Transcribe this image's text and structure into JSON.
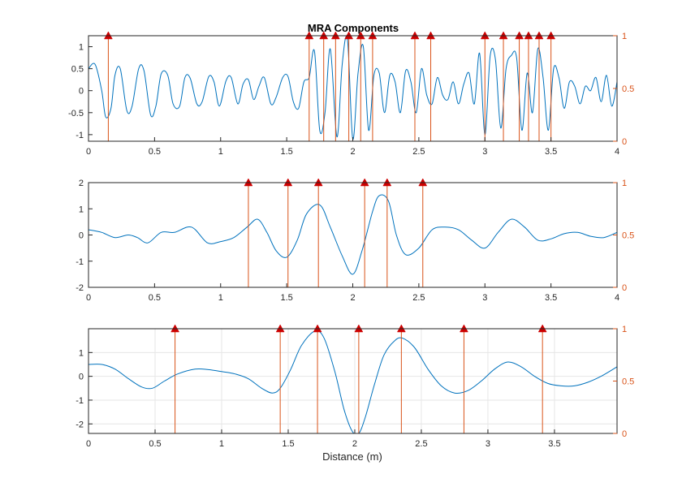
{
  "figure": {
    "title": "MRA Components",
    "xlabel": "Distance (m)"
  },
  "colors": {
    "signal": "#0072BD",
    "stem": "#D95319",
    "marker": "#CC0000",
    "axis": "#262626",
    "grid": "#E6E6E6"
  },
  "chart_data": [
    {
      "type": "line",
      "name": "panel-1",
      "xlim": [
        0,
        4
      ],
      "ylim": [
        -1.15,
        1.25
      ],
      "y2lim": [
        0,
        1
      ],
      "x_ticks": [
        0,
        0.5,
        1,
        1.5,
        2,
        2.5,
        3,
        3.5,
        4
      ],
      "x_tick_labels": [
        "0",
        "0.5",
        "1",
        "1.5",
        "2",
        "2.5",
        "3",
        "3.5",
        "4"
      ],
      "y_ticks": [
        -1,
        -0.5,
        0,
        0.5,
        1
      ],
      "y_tick_labels": [
        "-1",
        "-0.5",
        "0",
        "0.5",
        "1"
      ],
      "y2_ticks": [
        0,
        0.5,
        1
      ],
      "y2_tick_labels": [
        "0",
        "0.5",
        "1"
      ],
      "grid": false,
      "stems_x": [
        0.15,
        1.67,
        1.78,
        1.87,
        1.97,
        2.06,
        2.15,
        2.47,
        2.59,
        3.0,
        3.14,
        3.26,
        3.33,
        3.41,
        3.5
      ],
      "stem_height": 1,
      "signal": {
        "x": [
          0,
          0.05,
          0.1,
          0.13,
          0.17,
          0.2,
          0.24,
          0.29,
          0.33,
          0.38,
          0.42,
          0.47,
          0.51,
          0.55,
          0.6,
          0.64,
          0.69,
          0.73,
          0.77,
          0.82,
          0.86,
          0.91,
          0.95,
          0.99,
          1.04,
          1.08,
          1.13,
          1.17,
          1.21,
          1.25,
          1.29,
          1.33,
          1.38,
          1.42,
          1.47,
          1.51,
          1.55,
          1.59,
          1.63,
          1.67,
          1.71,
          1.75,
          1.79,
          1.83,
          1.88,
          1.92,
          1.96,
          2.0,
          2.04,
          2.08,
          2.12,
          2.16,
          2.2,
          2.24,
          2.28,
          2.32,
          2.36,
          2.4,
          2.44,
          2.48,
          2.52,
          2.56,
          2.6,
          2.64,
          2.68,
          2.72,
          2.76,
          2.8,
          2.84,
          2.88,
          2.92,
          2.96,
          3.0,
          3.04,
          3.08,
          3.12,
          3.16,
          3.2,
          3.24,
          3.28,
          3.32,
          3.36,
          3.4,
          3.44,
          3.48,
          3.52,
          3.56,
          3.6,
          3.64,
          3.68,
          3.72,
          3.76,
          3.8,
          3.84,
          3.88,
          3.92,
          3.96,
          4.0
        ],
        "y": [
          0.5,
          0.6,
          0.0,
          -0.6,
          -0.4,
          0.35,
          0.5,
          -0.45,
          -0.35,
          0.5,
          0.45,
          -0.55,
          -0.35,
          0.38,
          0.35,
          -0.3,
          -0.35,
          0.3,
          0.28,
          -0.3,
          -0.25,
          0.32,
          0.2,
          -0.35,
          0.22,
          0.3,
          -0.3,
          0.15,
          0.25,
          -0.2,
          0.1,
          0.3,
          -0.3,
          -0.15,
          0.3,
          0.32,
          -0.25,
          -0.4,
          0.2,
          0.3,
          0.9,
          -0.9,
          -0.5,
          0.95,
          -1.05,
          0.6,
          1.15,
          -1.1,
          0.4,
          1.0,
          -0.9,
          0.35,
          0.4,
          -0.5,
          0.35,
          0.2,
          -0.5,
          0.45,
          0.2,
          -0.5,
          0.5,
          -0.1,
          -0.3,
          0.3,
          -0.1,
          -0.2,
          0.2,
          -0.3,
          0.15,
          0.4,
          -0.3,
          0.85,
          -1.0,
          0.8,
          0.7,
          -0.85,
          0.5,
          0.8,
          0.75,
          -0.9,
          0.4,
          -0.5,
          0.95,
          0.3,
          -0.9,
          0.5,
          0.3,
          -0.4,
          0.2,
          0.1,
          -0.3,
          0.1,
          0.0,
          0.3,
          -0.25,
          0.35,
          -0.35,
          0.2
        ]
      }
    },
    {
      "type": "line",
      "name": "panel-2",
      "xlim": [
        0,
        4
      ],
      "ylim": [
        -2,
        2
      ],
      "y2lim": [
        0,
        1
      ],
      "x_ticks": [
        0,
        0.5,
        1,
        1.5,
        2,
        2.5,
        3,
        3.5,
        4
      ],
      "x_tick_labels": [
        "0",
        "0.5",
        "1",
        "1.5",
        "2",
        "2.5",
        "3",
        "3.5",
        "4"
      ],
      "y_ticks": [
        -2,
        -1,
        0,
        1,
        2
      ],
      "y_tick_labels": [
        "-2",
        "-1",
        "0",
        "1",
        "2"
      ],
      "y2_ticks": [
        0,
        0.5,
        1
      ],
      "y2_tick_labels": [
        "0",
        "0.5",
        "1"
      ],
      "grid": false,
      "stems_x": [
        1.21,
        1.51,
        1.74,
        2.09,
        2.26,
        2.53
      ],
      "stem_height": 1,
      "signal": {
        "x": [
          0,
          0.1,
          0.2,
          0.3,
          0.37,
          0.45,
          0.55,
          0.65,
          0.78,
          0.9,
          1.0,
          1.1,
          1.2,
          1.28,
          1.35,
          1.42,
          1.5,
          1.58,
          1.65,
          1.75,
          1.83,
          1.92,
          2.0,
          2.07,
          2.15,
          2.2,
          2.27,
          2.33,
          2.4,
          2.5,
          2.6,
          2.7,
          2.8,
          2.9,
          3.0,
          3.1,
          3.2,
          3.3,
          3.4,
          3.5,
          3.6,
          3.7,
          3.8,
          3.9,
          4.0
        ],
        "y": [
          0.2,
          0.1,
          -0.1,
          0.0,
          -0.1,
          -0.3,
          0.1,
          0.1,
          0.3,
          -0.3,
          -0.25,
          -0.1,
          0.3,
          0.6,
          0.1,
          -0.6,
          -0.85,
          -0.2,
          0.8,
          1.15,
          0.3,
          -0.8,
          -1.5,
          -0.6,
          0.9,
          1.5,
          1.3,
          0.0,
          -0.75,
          -0.5,
          0.2,
          0.3,
          0.2,
          -0.2,
          -0.5,
          0.1,
          0.6,
          0.3,
          -0.2,
          -0.15,
          0.05,
          0.1,
          -0.05,
          -0.1,
          0.1
        ]
      }
    },
    {
      "type": "line",
      "name": "panel-3",
      "xlim": [
        0,
        3.97
      ],
      "ylim": [
        -2.4,
        2.0
      ],
      "y2lim": [
        0,
        1
      ],
      "x_ticks": [
        0,
        0.5,
        1,
        1.5,
        2,
        2.5,
        3,
        3.5
      ],
      "x_tick_labels": [
        "0",
        "0.5",
        "1",
        "1.5",
        "2",
        "2.5",
        "3",
        "3.5"
      ],
      "y_ticks": [
        -2,
        -1,
        0,
        1
      ],
      "y_tick_labels": [
        "-2",
        "-1",
        "0",
        "1"
      ],
      "y2_ticks": [
        0,
        0.5,
        1
      ],
      "y2_tick_labels": [
        "0",
        "0.5",
        "1"
      ],
      "grid": true,
      "stems_x": [
        0.65,
        1.44,
        1.72,
        2.03,
        2.35,
        2.82,
        3.41
      ],
      "stem_height": 1,
      "signal": {
        "x": [
          0,
          0.1,
          0.2,
          0.3,
          0.4,
          0.48,
          0.57,
          0.67,
          0.8,
          0.9,
          1.0,
          1.1,
          1.2,
          1.3,
          1.38,
          1.44,
          1.52,
          1.6,
          1.7,
          1.77,
          1.85,
          1.92,
          1.98,
          2.03,
          2.08,
          2.15,
          2.22,
          2.3,
          2.36,
          2.45,
          2.55,
          2.65,
          2.75,
          2.85,
          2.95,
          3.05,
          3.15,
          3.25,
          3.35,
          3.45,
          3.55,
          3.65,
          3.75,
          3.85,
          3.97
        ],
        "y": [
          0.5,
          0.5,
          0.3,
          -0.1,
          -0.45,
          -0.5,
          -0.2,
          0.1,
          0.3,
          0.28,
          0.2,
          0.1,
          -0.1,
          -0.5,
          -0.7,
          -0.5,
          0.3,
          1.3,
          1.9,
          1.6,
          0.2,
          -1.4,
          -2.3,
          -2.4,
          -1.7,
          -0.3,
          0.9,
          1.5,
          1.6,
          1.2,
          0.3,
          -0.4,
          -0.7,
          -0.6,
          -0.2,
          0.3,
          0.6,
          0.4,
          0.0,
          -0.3,
          -0.4,
          -0.4,
          -0.25,
          0.0,
          0.4
        ]
      }
    }
  ]
}
